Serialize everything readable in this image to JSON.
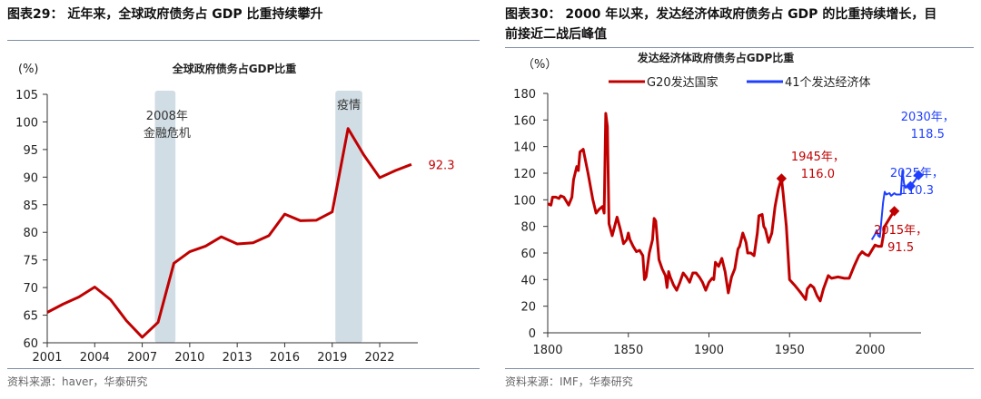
{
  "left": {
    "header": "图表29：  近年来，全球政府债务占 GDP 比重持续攀升",
    "source": "资料来源：haver，华泰研究"
  },
  "right": {
    "header_line1": "图表30：  2000 年以来，发达经济体政府债务占 GDP 的比重持续增长，目",
    "header_line2": "前接近二战后峰值",
    "source": "资料来源：IMF，华泰研究"
  },
  "chart_data": [
    {
      "type": "line",
      "title": "全球政府债务占GDP比重",
      "ylabel": "(%)",
      "ylim": [
        60,
        105
      ],
      "yticks": [
        60,
        65,
        70,
        75,
        80,
        85,
        90,
        95,
        100,
        105
      ],
      "xticks": [
        2001,
        2004,
        2007,
        2010,
        2013,
        2016,
        2019,
        2022
      ],
      "grid": false,
      "x": [
        2001,
        2002,
        2003,
        2004,
        2005,
        2006,
        2007,
        2008,
        2009,
        2010,
        2011,
        2012,
        2013,
        2014,
        2015,
        2016,
        2017,
        2018,
        2019,
        2020,
        2021,
        2022,
        2023,
        2024
      ],
      "series": [
        {
          "color": "#c00000",
          "values": [
            65.5,
            67,
            68.3,
            70.1,
            67.8,
            64,
            61,
            63.7,
            74.4,
            76.5,
            77.5,
            79.2,
            77.9,
            78.1,
            79.4,
            83.3,
            82.1,
            82.2,
            83.7,
            98.8,
            94,
            89.9,
            91.2,
            92.3
          ]
        }
      ],
      "end_label": "92.3",
      "shaded": [
        {
          "from": 2007.8,
          "to": 2009.1,
          "label": [
            "2008年",
            "金融危机"
          ]
        },
        {
          "from": 2019.2,
          "to": 2020.9,
          "label": [
            "疫情"
          ]
        }
      ]
    },
    {
      "type": "line",
      "title": "发达经济体政府债务占GDP比重",
      "ylabel": "（%）",
      "ylim": [
        0,
        180
      ],
      "xlim": [
        1800,
        2030
      ],
      "yticks": [
        0,
        20,
        40,
        60,
        80,
        100,
        120,
        140,
        160,
        180
      ],
      "xticks": [
        1800,
        1850,
        1900,
        1950,
        2000
      ],
      "legend": "top",
      "series": [
        {
          "name": "G20发达国家",
          "color": "#c00000",
          "points": [
            [
              1800,
              97
            ],
            [
              1802,
              96
            ],
            [
              1803,
              102
            ],
            [
              1805,
              102
            ],
            [
              1807,
              101
            ],
            [
              1808,
              103
            ],
            [
              1810,
              102
            ],
            [
              1813,
              96
            ],
            [
              1815,
              102
            ],
            [
              1816,
              115
            ],
            [
              1818,
              125
            ],
            [
              1819,
              122
            ],
            [
              1820,
              136
            ],
            [
              1822,
              138
            ],
            [
              1825,
              120
            ],
            [
              1828,
              100
            ],
            [
              1830,
              90
            ],
            [
              1832,
              93
            ],
            [
              1834,
              95
            ],
            [
              1835,
              90
            ],
            [
              1836,
              165
            ],
            [
              1837,
              155
            ],
            [
              1838,
              82
            ],
            [
              1840,
              73
            ],
            [
              1843,
              87
            ],
            [
              1845,
              78
            ],
            [
              1847,
              67
            ],
            [
              1849,
              70
            ],
            [
              1850,
              75
            ],
            [
              1851,
              70
            ],
            [
              1853,
              65
            ],
            [
              1855,
              61
            ],
            [
              1857,
              62
            ],
            [
              1859,
              58
            ],
            [
              1860,
              40
            ],
            [
              1861,
              42
            ],
            [
              1863,
              60
            ],
            [
              1865,
              70
            ],
            [
              1866,
              86
            ],
            [
              1867,
              84
            ],
            [
              1869,
              55
            ],
            [
              1871,
              48
            ],
            [
              1873,
              43
            ],
            [
              1874,
              34
            ],
            [
              1875,
              46
            ],
            [
              1876,
              42
            ],
            [
              1878,
              36
            ],
            [
              1880,
              32
            ],
            [
              1882,
              38
            ],
            [
              1884,
              45
            ],
            [
              1886,
              42
            ],
            [
              1888,
              38
            ],
            [
              1890,
              45
            ],
            [
              1892,
              45
            ],
            [
              1894,
              42
            ],
            [
              1896,
              38
            ],
            [
              1898,
              32
            ],
            [
              1900,
              38
            ],
            [
              1902,
              41
            ],
            [
              1903,
              40
            ],
            [
              1904,
              53
            ],
            [
              1906,
              50
            ],
            [
              1908,
              56
            ],
            [
              1910,
              46
            ],
            [
              1912,
              30
            ],
            [
              1914,
              42
            ],
            [
              1916,
              48
            ],
            [
              1918,
              63
            ],
            [
              1919,
              65
            ],
            [
              1921,
              75
            ],
            [
              1923,
              68
            ],
            [
              1924,
              60
            ],
            [
              1926,
              60
            ],
            [
              1928,
              58
            ],
            [
              1930,
              75
            ],
            [
              1931,
              88
            ],
            [
              1933,
              89
            ],
            [
              1934,
              80
            ],
            [
              1935,
              78
            ],
            [
              1937,
              68
            ],
            [
              1939,
              75
            ],
            [
              1941,
              95
            ],
            [
              1943,
              108
            ],
            [
              1945,
              116
            ],
            [
              1946,
              105
            ],
            [
              1948,
              80
            ],
            [
              1950,
              40
            ],
            [
              1953,
              36
            ],
            [
              1955,
              33
            ],
            [
              1957,
              30
            ],
            [
              1960,
              25
            ],
            [
              1961,
              33
            ],
            [
              1963,
              36
            ],
            [
              1965,
              34
            ],
            [
              1967,
              28
            ],
            [
              1969,
              24
            ],
            [
              1971,
              33
            ],
            [
              1974,
              43
            ],
            [
              1976,
              41
            ],
            [
              1980,
              42
            ],
            [
              1984,
              41
            ],
            [
              1987,
              41
            ],
            [
              1990,
              50
            ],
            [
              1993,
              58
            ],
            [
              1995,
              61
            ],
            [
              1997,
              59
            ],
            [
              1999,
              58
            ],
            [
              2001,
              62
            ],
            [
              2003,
              66
            ],
            [
              2005,
              65
            ],
            [
              2007,
              65
            ],
            [
              2008,
              72
            ],
            [
              2009,
              80
            ],
            [
              2011,
              84
            ],
            [
              2013,
              88
            ],
            [
              2015,
              91.5
            ]
          ]
        },
        {
          "name": "41个发达经济体",
          "color": "#1f3fff",
          "points": [
            [
              2001,
              70
            ],
            [
              2003,
              74
            ],
            [
              2004,
              77
            ],
            [
              2005,
              73
            ],
            [
              2006,
              72
            ],
            [
              2007,
              85
            ],
            [
              2008,
              98
            ],
            [
              2009,
              106
            ],
            [
              2010,
              104
            ],
            [
              2012,
              105
            ],
            [
              2013,
              103
            ],
            [
              2015,
              105
            ],
            [
              2016,
              104
            ],
            [
              2019,
              104
            ],
            [
              2020,
              122
            ],
            [
              2021,
              112
            ],
            [
              2022,
              109
            ],
            [
              2023,
              110
            ],
            [
              2025,
              110.3
            ],
            [
              2028,
              115
            ],
            [
              2030,
              118.5
            ]
          ]
        }
      ],
      "annotations": [
        {
          "year": 1945,
          "value": 116.0,
          "lines": [
            "1945年，",
            "116.0"
          ],
          "color": "#c00000"
        },
        {
          "year": 2015,
          "value": 91.5,
          "lines": [
            "2015年，",
            "91.5"
          ],
          "color": "#c00000"
        },
        {
          "year": 2025,
          "value": 110.3,
          "lines": [
            "2025年，",
            "110.3"
          ],
          "color": "#1f3fff"
        },
        {
          "year": 2030,
          "value": 118.5,
          "lines": [
            "2030年，",
            "118.5"
          ],
          "color": "#1f3fff"
        }
      ]
    }
  ]
}
